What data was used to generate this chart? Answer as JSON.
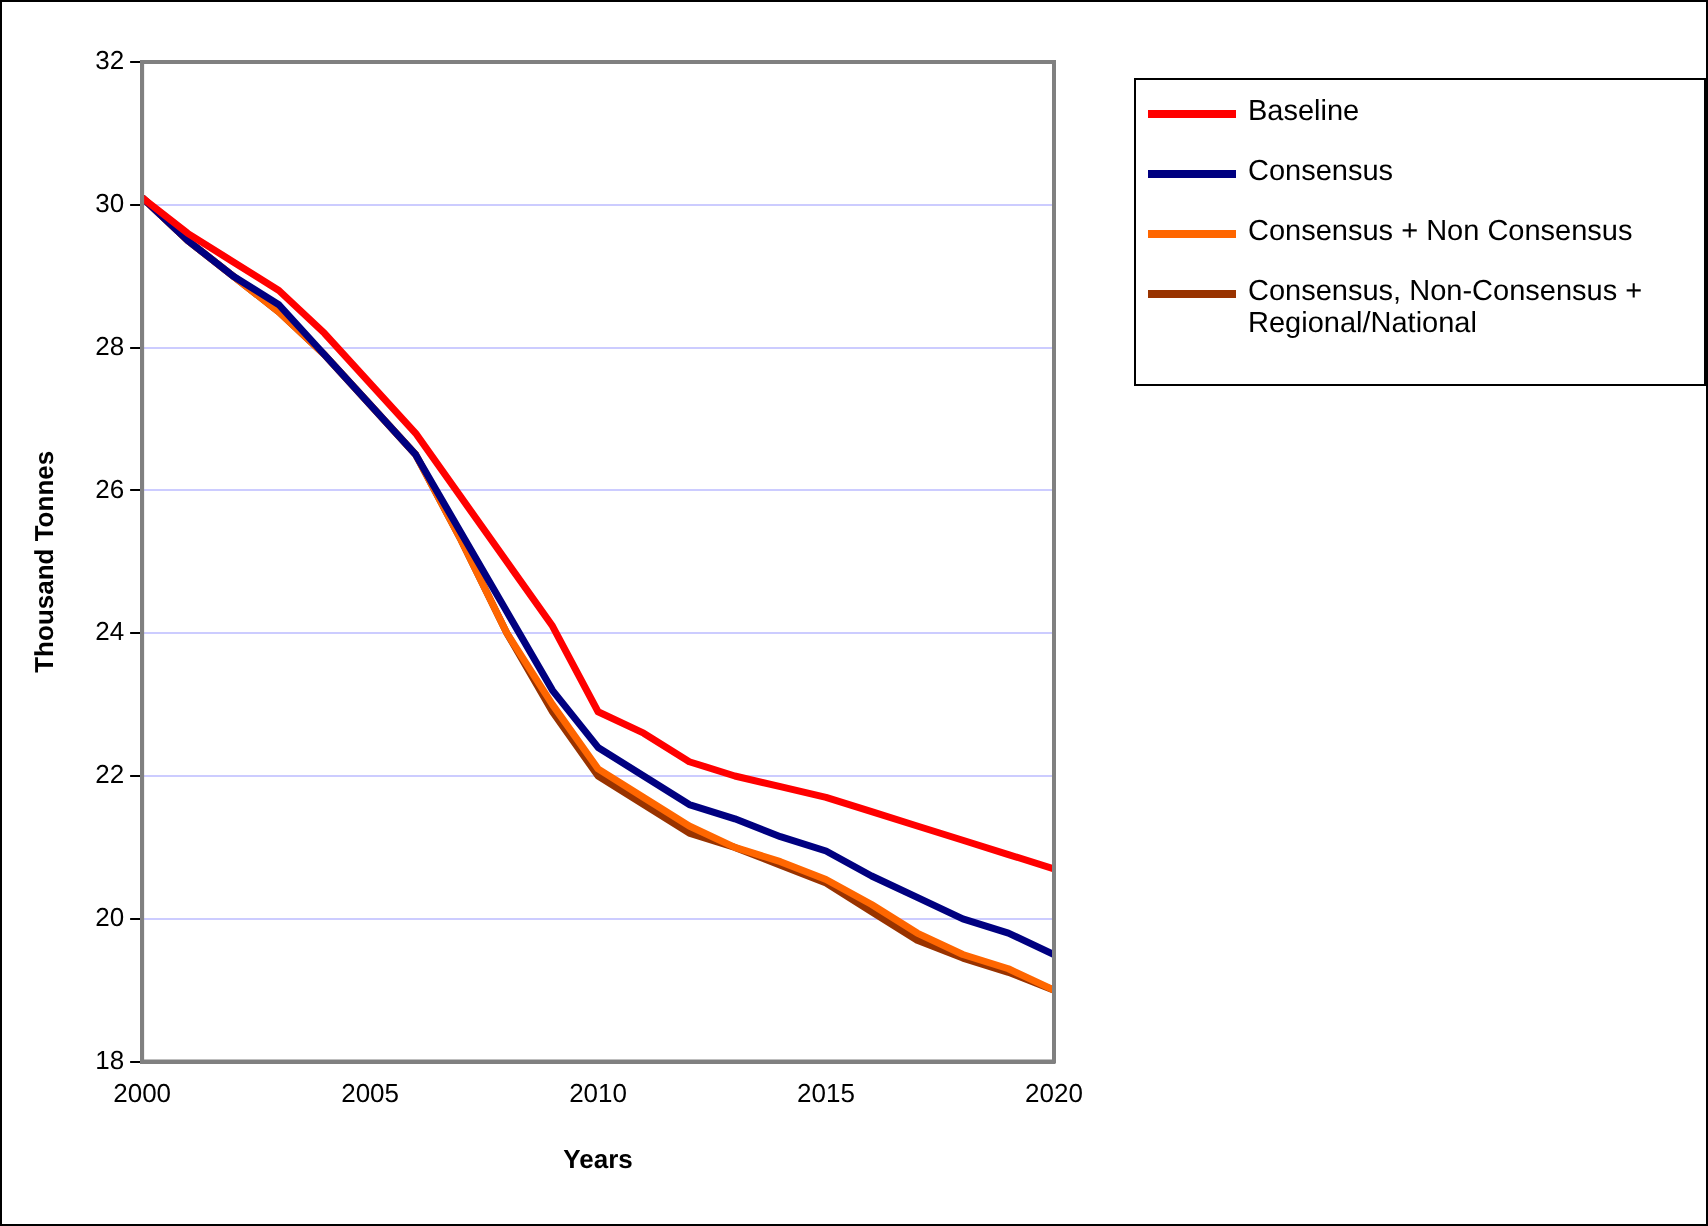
{
  "chart_data": {
    "type": "line",
    "xlabel": "Years",
    "ylabel": "Thousand Tonnes",
    "x": [
      2000,
      2001,
      2002,
      2003,
      2004,
      2005,
      2006,
      2007,
      2008,
      2009,
      2010,
      2011,
      2012,
      2013,
      2014,
      2015,
      2016,
      2017,
      2018,
      2019,
      2020
    ],
    "series": [
      {
        "name": "Baseline",
        "color": "#ff0000",
        "values": [
          30.1,
          29.6,
          29.2,
          28.8,
          28.2,
          27.5,
          26.8,
          25.9,
          25.0,
          24.1,
          22.9,
          22.6,
          22.2,
          22.0,
          21.85,
          21.7,
          21.5,
          21.3,
          21.1,
          20.9,
          20.7
        ]
      },
      {
        "name": "Consensus",
        "color": "#000080",
        "values": [
          30.1,
          29.5,
          29.0,
          28.6,
          27.9,
          27.2,
          26.5,
          25.4,
          24.3,
          23.2,
          22.4,
          22.0,
          21.6,
          21.4,
          21.15,
          20.95,
          20.6,
          20.3,
          20.0,
          19.8,
          19.5
        ]
      },
      {
        "name": "Consensus + Non Consensus",
        "color": "#ff6600",
        "values": [
          30.1,
          29.5,
          29.0,
          28.5,
          27.9,
          27.2,
          26.5,
          25.3,
          24.0,
          23.0,
          22.1,
          21.7,
          21.3,
          21.0,
          20.8,
          20.55,
          20.2,
          19.8,
          19.5,
          19.3,
          19.0
        ]
      },
      {
        "name": "Consensus, Non-Consensus + Regional/National",
        "color": "#993300",
        "values": [
          30.1,
          29.5,
          29.0,
          28.5,
          27.9,
          27.2,
          26.5,
          25.3,
          24.0,
          22.9,
          22.0,
          21.6,
          21.2,
          21.0,
          20.75,
          20.5,
          20.1,
          19.7,
          19.45,
          19.25,
          19.0
        ]
      }
    ],
    "xlim": [
      2000,
      2020
    ],
    "xticks": [
      2000,
      2005,
      2010,
      2015,
      2020
    ],
    "ylim": [
      18,
      32
    ],
    "yticks": [
      18,
      20,
      22,
      24,
      26,
      28,
      30,
      32
    ],
    "grid": "y",
    "legend": "right",
    "marker": "none",
    "line_style": "solid"
  }
}
